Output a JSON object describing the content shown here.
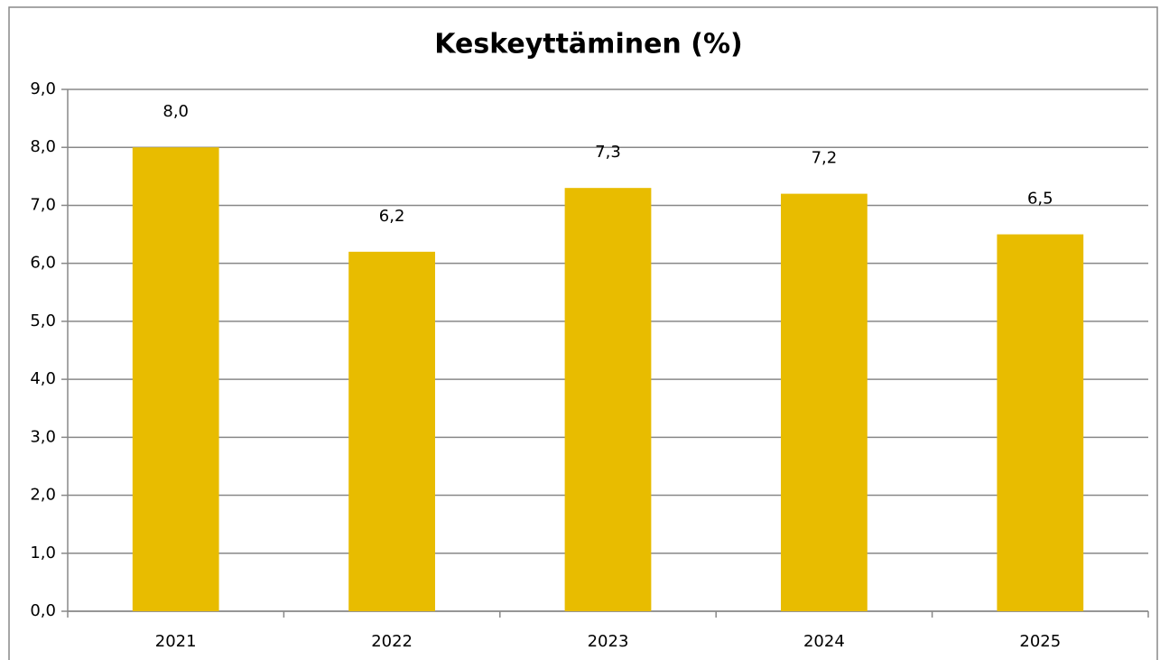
{
  "chart_data": {
    "type": "bar",
    "title": "Keskeyttäminen (%)",
    "categories": [
      "2021",
      "2022",
      "2023",
      "2024",
      "2025"
    ],
    "values": [
      8.0,
      6.2,
      7.3,
      7.2,
      6.5
    ],
    "value_labels": [
      "8,0",
      "6,2",
      "7,3",
      "7,2",
      "6,5"
    ],
    "color": "#e8bc00",
    "ylim": [
      0,
      9
    ],
    "yticks": [
      {
        "value": 0,
        "label": "0,0"
      },
      {
        "value": 1,
        "label": "1,0"
      },
      {
        "value": 2,
        "label": "2,0"
      },
      {
        "value": 3,
        "label": "3,0"
      },
      {
        "value": 4,
        "label": "4,0"
      },
      {
        "value": 5,
        "label": "5,0"
      },
      {
        "value": 6,
        "label": "6,0"
      },
      {
        "value": 7,
        "label": "7,0"
      },
      {
        "value": 8,
        "label": "8,0"
      },
      {
        "value": 9,
        "label": "9,0"
      }
    ],
    "grid": true
  }
}
